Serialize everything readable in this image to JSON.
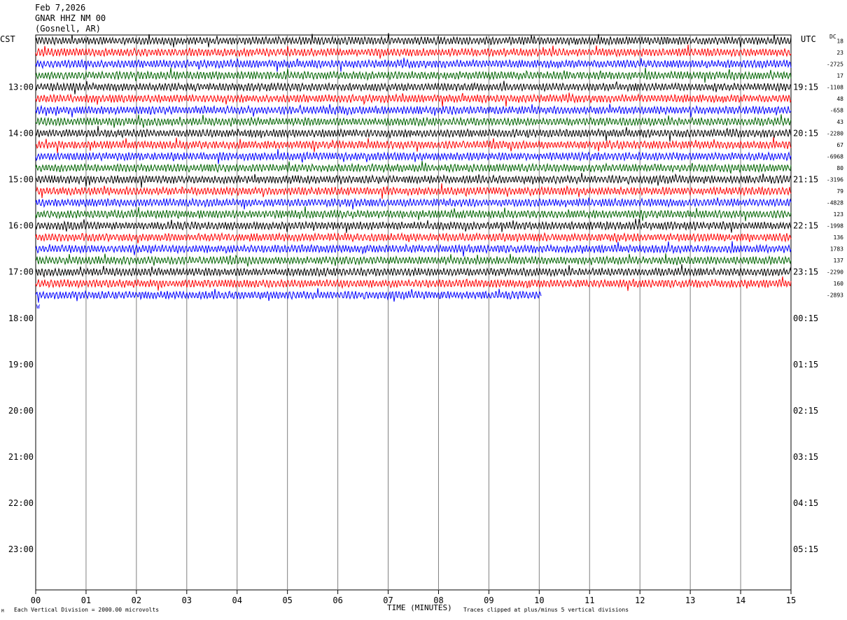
{
  "header": {
    "date": "Feb 7,2026",
    "station": "GNAR HHZ NM 00",
    "location": "(Gosnell, AR)"
  },
  "timezones": {
    "left": "CST",
    "right": "UTC",
    "dc_label": "DC"
  },
  "footer": {
    "scale_note": "Each Vertical Division = 2000.00 microvolts",
    "clip_note": "Traces clipped at plus/minus 5 vertical divisions",
    "tiny_mark": "M"
  },
  "chart_data": {
    "type": "line",
    "title": "GNAR HHZ NM 00",
    "xlabel": "TIME (MINUTES)",
    "ylabel": "",
    "x_ticks": [
      "00",
      "01",
      "02",
      "03",
      "04",
      "05",
      "06",
      "07",
      "08",
      "09",
      "10",
      "11",
      "12",
      "13",
      "14",
      "15"
    ],
    "xlim": [
      0,
      15
    ],
    "left_time_labels": [
      "13:00",
      "14:00",
      "15:00",
      "16:00",
      "17:00",
      "18:00",
      "19:00",
      "20:00",
      "21:00",
      "22:00",
      "23:00"
    ],
    "right_time_labels": [
      "19:15",
      "20:15",
      "21:15",
      "22:15",
      "23:15",
      "00:15",
      "01:15",
      "02:15",
      "03:15",
      "04:15",
      "05:15"
    ],
    "row_label_interval": 4,
    "first_label_row": 4,
    "total_rows": 48,
    "trace_colors": [
      "#000000",
      "#ff0000",
      "#0000ff",
      "#006400"
    ],
    "traces_count": 23,
    "last_trace_end_minute": 10.05,
    "dc_offsets": [
      "18",
      "23",
      "-2725",
      "17",
      "-1108",
      "48",
      "-658",
      "43",
      "-2280",
      "67",
      "-6968",
      "80",
      "-3196",
      "79",
      "-4828",
      "123",
      "-1998",
      "136",
      "1783",
      "137",
      "-2290",
      "160",
      "-2893"
    ],
    "event_marker": "W"
  }
}
